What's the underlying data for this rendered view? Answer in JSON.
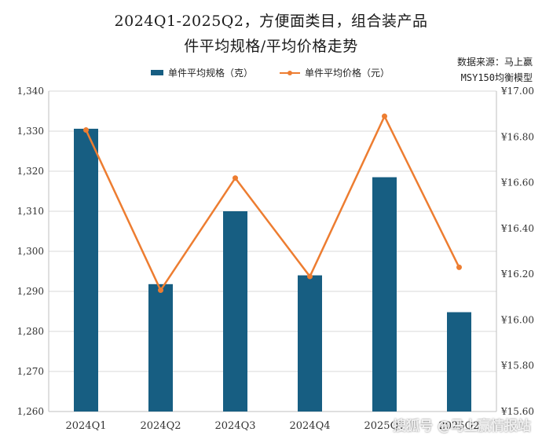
{
  "title_line1": "2024Q1-2025Q2，方便面类目，组合装产品",
  "title_line2": "件平均规格/平均价格走势",
  "source_line1": "数据来源：马上赢",
  "source_line2": "MSY150均衡模型",
  "watermark": "搜狐号 @马上赢情报站",
  "colors": {
    "bar": "#175e82",
    "line": "#ed7d31",
    "grid": "#d9d9d9"
  },
  "chart_data": {
    "type": "bar+line",
    "categories": [
      "2024Q1",
      "2024Q2",
      "2024Q3",
      "2024Q4",
      "2025Q1",
      "2025Q2"
    ],
    "series": [
      {
        "name": "单件平均规格（克）",
        "type": "bar",
        "axis": "left",
        "values": [
          1330.6,
          1291.8,
          1310.0,
          1294.0,
          1318.5,
          1284.8
        ]
      },
      {
        "name": "单件平均价格（元）",
        "type": "line",
        "axis": "right",
        "values": [
          16.83,
          16.13,
          16.62,
          16.19,
          16.89,
          16.23
        ]
      }
    ],
    "y_left": {
      "min": 1260,
      "max": 1340,
      "step": 10,
      "ticks": [
        "1,260",
        "1,270",
        "1,280",
        "1,290",
        "1,300",
        "1,310",
        "1,320",
        "1,330",
        "1,340"
      ]
    },
    "y_right": {
      "min": 15.6,
      "max": 17.0,
      "step": 0.2,
      "ticks": [
        "¥15.60",
        "¥15.80",
        "¥16.00",
        "¥16.20",
        "¥16.40",
        "¥16.60",
        "¥16.80",
        "¥17.00"
      ]
    },
    "grid": true,
    "legend": "top"
  }
}
